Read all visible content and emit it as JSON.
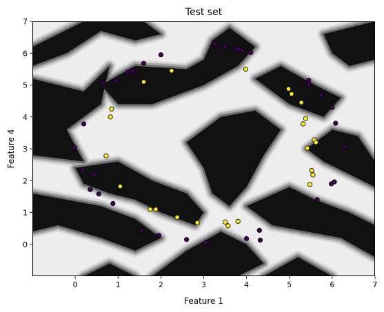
{
  "chart_data": {
    "type": "scatter",
    "title": "Test set",
    "xlabel": "Feature 1",
    "ylabel": "Feature 4",
    "xlim": [
      -1,
      7
    ],
    "ylim": [
      -1,
      7
    ],
    "xticks": [
      "0",
      "1",
      "2",
      "3",
      "4",
      "5",
      "6",
      "7"
    ],
    "yticks": [
      "0",
      "1",
      "2",
      "3",
      "4",
      "5",
      "6",
      "7"
    ],
    "grid": false,
    "background": "decision-regions",
    "colors": {
      "class_0": "#440154",
      "class_1": "#fde725",
      "region_dark": "#111111",
      "region_light": "#ededed"
    },
    "series": [
      {
        "class": 0,
        "x": [
          -0.02,
          0.18,
          0.2,
          0.35,
          0.45,
          0.55,
          0.65,
          0.88,
          0.95,
          1.22,
          1.3,
          1.35,
          1.55,
          1.6,
          1.95,
          2.0,
          2.6,
          3.05,
          3.25,
          3.5,
          3.75,
          3.82,
          3.9,
          4.0,
          4.1,
          4.3,
          4.32,
          5.45,
          5.45,
          5.65,
          5.75,
          5.98,
          6.0,
          6.05,
          6.08,
          6.28
        ],
        "y": [
          3.05,
          2.3,
          3.78,
          1.72,
          2.18,
          1.58,
          5.08,
          1.28,
          5.12,
          5.4,
          5.45,
          5.45,
          0.44,
          5.68,
          0.28,
          5.95,
          0.15,
          0.05,
          6.3,
          6.2,
          6.15,
          6.12,
          6.08,
          0.18,
          6.02,
          0.44,
          0.13,
          5.02,
          5.15,
          1.4,
          4.7,
          1.9,
          4.3,
          1.96,
          3.8,
          3.07
        ]
      },
      {
        "class": 1,
        "x": [
          0.72,
          0.82,
          0.85,
          1.05,
          1.6,
          1.75,
          1.88,
          2.25,
          2.38,
          2.85,
          3.5,
          3.57,
          3.8,
          3.98,
          4.98,
          5.05,
          5.28,
          5.32,
          5.38,
          5.42,
          5.48,
          5.52,
          5.55,
          5.58,
          5.62
        ],
        "y": [
          2.78,
          4.0,
          4.25,
          1.82,
          5.1,
          1.1,
          1.1,
          5.45,
          0.85,
          0.68,
          0.7,
          0.58,
          0.72,
          5.5,
          4.88,
          4.72,
          4.45,
          3.78,
          3.95,
          3.02,
          1.88,
          2.32,
          2.18,
          3.28,
          3.2
        ]
      }
    ]
  }
}
